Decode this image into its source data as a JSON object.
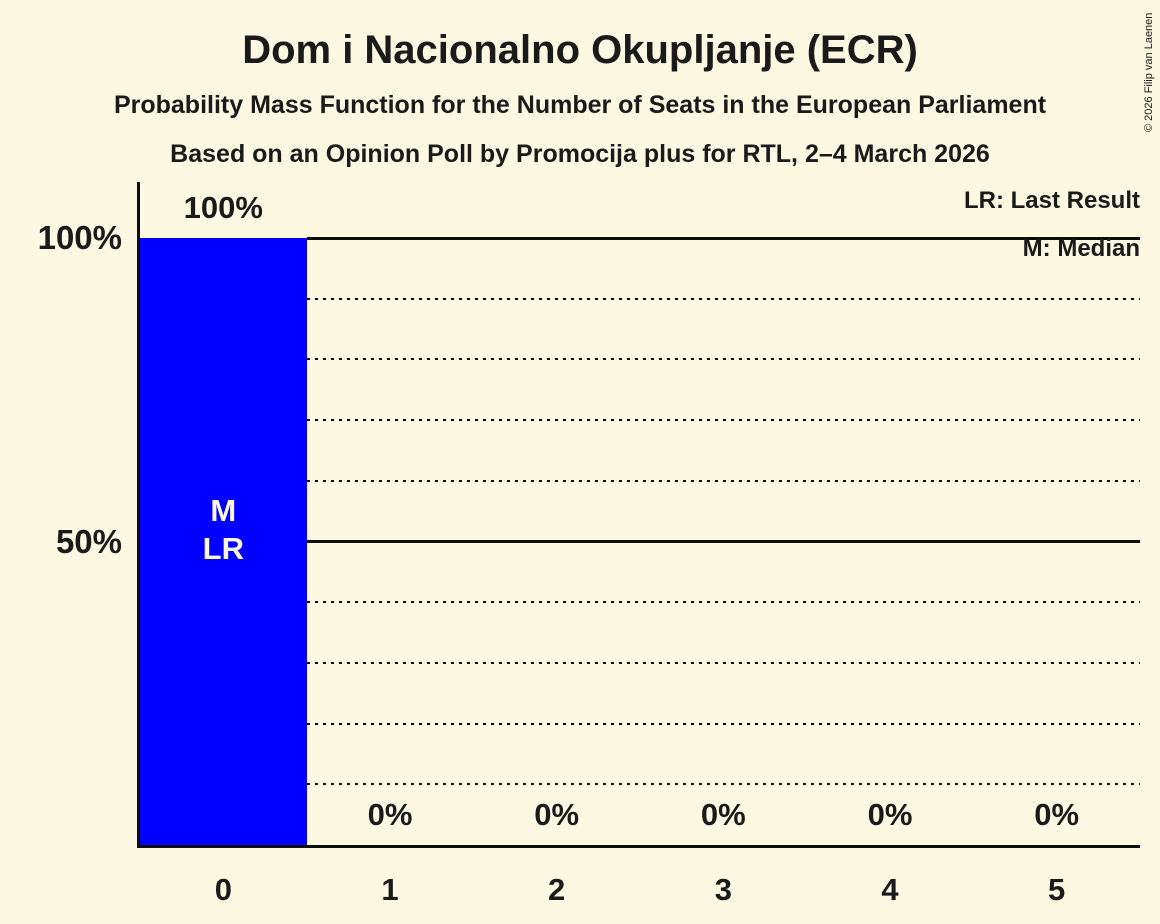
{
  "page": {
    "background_color": "#FDF8E1",
    "text_color": "#1A1A1A",
    "grid_color": "#0D0D0D"
  },
  "header": {
    "title": "Dom i Nacionalno Okupljanje (ECR)",
    "subtitle1": "Probability Mass Function for the Number of Seats in the European Parliament",
    "subtitle2": "Based on an Opinion Poll by Promocija plus for RTL, 2–4 March 2026"
  },
  "copyright": "© 2026 Filip van Laenen",
  "legend": {
    "lr_label": "LR: Last Result",
    "m_label": "M: Median"
  },
  "chart_data": {
    "type": "bar",
    "title": "Dom i Nacionalno Okupljanje (ECR)",
    "categories": [
      "0",
      "1",
      "2",
      "3",
      "4",
      "5"
    ],
    "values": [
      100,
      0,
      0,
      0,
      0,
      0
    ],
    "value_labels": [
      "100%",
      "0%",
      "0%",
      "0%",
      "0%",
      "0%"
    ],
    "xlabel": "",
    "ylabel": "",
    "ylim": [
      0,
      100
    ],
    "yticks": [
      {
        "value": 100,
        "label": "100%"
      },
      {
        "value": 50,
        "label": "50%"
      }
    ],
    "solid_gridlines": [
      100,
      50
    ],
    "dotted_gridlines": [
      90,
      80,
      70,
      60,
      40,
      30,
      20,
      10
    ],
    "grid_on": true,
    "legend_position": "top-right",
    "bar_color": "#0000FF",
    "bar_annotation_color": "#FDF8E1",
    "annotations": [
      {
        "category": "0",
        "text": "M\nLR",
        "meaning": "Median and Last Result at 0 seats"
      }
    ]
  }
}
